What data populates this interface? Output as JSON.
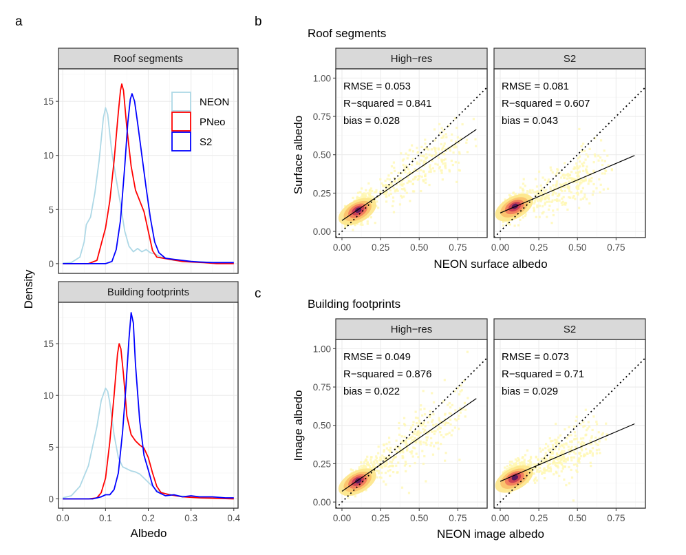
{
  "panel_labels": {
    "a": "a",
    "b": "b",
    "c": "c"
  },
  "chart_data": [
    {
      "id": "a",
      "type": "line",
      "ylabel": "Density",
      "xlabel": "Albedo",
      "xlim": [
        -0.01,
        0.41
      ],
      "x_ticks": [
        0.0,
        0.1,
        0.2,
        0.3,
        0.4
      ],
      "x_tick_labels": [
        "0.0",
        "0.1",
        "0.2",
        "0.3",
        "0.4"
      ],
      "legend": {
        "placement": "top-right",
        "entries": [
          {
            "name": "NEON",
            "color": "#add8e6"
          },
          {
            "name": "PNeo",
            "color": "#ff0000"
          },
          {
            "name": "S2",
            "color": "#0000ff"
          }
        ]
      },
      "facets": [
        {
          "strip": "Roof segments",
          "ylim": [
            -0.9,
            18.0
          ],
          "y_ticks": [
            0,
            5,
            10,
            15
          ],
          "y_tick_labels": [
            "0",
            "5",
            "10",
            "15"
          ],
          "series": [
            {
              "name": "NEON",
              "color": "#add8e6",
              "points": [
                [
                  0.0,
                  0.05
                ],
                [
                  0.02,
                  0.1
                ],
                [
                  0.04,
                  0.6
                ],
                [
                  0.05,
                  2.0
                ],
                [
                  0.055,
                  3.6
                ],
                [
                  0.065,
                  4.3
                ],
                [
                  0.075,
                  6.5
                ],
                [
                  0.085,
                  9.5
                ],
                [
                  0.095,
                  13.5
                ],
                [
                  0.1,
                  14.4
                ],
                [
                  0.105,
                  13.8
                ],
                [
                  0.115,
                  10.2
                ],
                [
                  0.125,
                  7.8
                ],
                [
                  0.135,
                  5.5
                ],
                [
                  0.145,
                  3.0
                ],
                [
                  0.155,
                  1.6
                ],
                [
                  0.165,
                  1.1
                ],
                [
                  0.175,
                  1.4
                ],
                [
                  0.185,
                  1.1
                ],
                [
                  0.195,
                  1.3
                ],
                [
                  0.205,
                  1.0
                ],
                [
                  0.215,
                  0.9
                ],
                [
                  0.23,
                  0.6
                ],
                [
                  0.26,
                  0.3
                ],
                [
                  0.3,
                  0.2
                ],
                [
                  0.35,
                  0.1
                ],
                [
                  0.4,
                  0.05
                ]
              ]
            },
            {
              "name": "PNeo",
              "color": "#ff0000",
              "points": [
                [
                  0.0,
                  0.0
                ],
                [
                  0.06,
                  0.0
                ],
                [
                  0.08,
                  0.3
                ],
                [
                  0.09,
                  1.8
                ],
                [
                  0.1,
                  3.3
                ],
                [
                  0.11,
                  5.8
                ],
                [
                  0.12,
                  9.5
                ],
                [
                  0.13,
                  14.0
                ],
                [
                  0.135,
                  16.0
                ],
                [
                  0.138,
                  16.6
                ],
                [
                  0.142,
                  16.0
                ],
                [
                  0.15,
                  12.5
                ],
                [
                  0.16,
                  9.0
                ],
                [
                  0.17,
                  6.8
                ],
                [
                  0.18,
                  5.8
                ],
                [
                  0.19,
                  4.8
                ],
                [
                  0.2,
                  3.0
                ],
                [
                  0.21,
                  1.2
                ],
                [
                  0.22,
                  0.6
                ],
                [
                  0.25,
                  0.4
                ],
                [
                  0.28,
                  0.2
                ],
                [
                  0.3,
                  0.15
                ],
                [
                  0.33,
                  0.1
                ],
                [
                  0.36,
                  0.0
                ],
                [
                  0.4,
                  0.0
                ]
              ]
            },
            {
              "name": "S2",
              "color": "#0000ff",
              "points": [
                [
                  0.0,
                  0.0
                ],
                [
                  0.1,
                  0.0
                ],
                [
                  0.115,
                  0.2
                ],
                [
                  0.125,
                  1.3
                ],
                [
                  0.135,
                  4.0
                ],
                [
                  0.145,
                  9.0
                ],
                [
                  0.152,
                  13.0
                ],
                [
                  0.158,
                  15.2
                ],
                [
                  0.162,
                  15.7
                ],
                [
                  0.168,
                  15.0
                ],
                [
                  0.175,
                  13.0
                ],
                [
                  0.185,
                  10.0
                ],
                [
                  0.195,
                  7.0
                ],
                [
                  0.205,
                  4.2
                ],
                [
                  0.215,
                  2.0
                ],
                [
                  0.225,
                  1.0
                ],
                [
                  0.24,
                  0.5
                ],
                [
                  0.26,
                  0.4
                ],
                [
                  0.28,
                  0.3
                ],
                [
                  0.3,
                  0.2
                ],
                [
                  0.32,
                  0.15
                ],
                [
                  0.35,
                  0.1
                ],
                [
                  0.38,
                  0.1
                ],
                [
                  0.4,
                  0.1
                ]
              ]
            }
          ]
        },
        {
          "strip": "Building footprints",
          "ylim": [
            -0.9,
            19.0
          ],
          "y_ticks": [
            0,
            5,
            10,
            15
          ],
          "y_tick_labels": [
            "0",
            "5",
            "10",
            "15"
          ],
          "series": [
            {
              "name": "NEON",
              "color": "#add8e6",
              "points": [
                [
                  0.0,
                  0.1
                ],
                [
                  0.02,
                  0.3
                ],
                [
                  0.04,
                  1.2
                ],
                [
                  0.06,
                  3.2
                ],
                [
                  0.08,
                  7.0
                ],
                [
                  0.09,
                  9.5
                ],
                [
                  0.1,
                  10.7
                ],
                [
                  0.105,
                  10.4
                ],
                [
                  0.11,
                  9.3
                ],
                [
                  0.12,
                  6.2
                ],
                [
                  0.13,
                  4.0
                ],
                [
                  0.14,
                  3.1
                ],
                [
                  0.15,
                  2.9
                ],
                [
                  0.16,
                  2.7
                ],
                [
                  0.17,
                  2.6
                ],
                [
                  0.18,
                  2.4
                ],
                [
                  0.19,
                  2.0
                ],
                [
                  0.2,
                  1.6
                ],
                [
                  0.21,
                  1.2
                ],
                [
                  0.22,
                  0.8
                ],
                [
                  0.24,
                  0.5
                ],
                [
                  0.27,
                  0.3
                ],
                [
                  0.3,
                  0.2
                ],
                [
                  0.35,
                  0.1
                ],
                [
                  0.4,
                  0.05
                ]
              ]
            },
            {
              "name": "PNeo",
              "color": "#ff0000",
              "points": [
                [
                  0.0,
                  0.0
                ],
                [
                  0.06,
                  0.0
                ],
                [
                  0.08,
                  0.1
                ],
                [
                  0.09,
                  0.6
                ],
                [
                  0.1,
                  2.0
                ],
                [
                  0.11,
                  5.5
                ],
                [
                  0.12,
                  10.0
                ],
                [
                  0.128,
                  14.0
                ],
                [
                  0.132,
                  15.0
                ],
                [
                  0.136,
                  14.5
                ],
                [
                  0.142,
                  12.0
                ],
                [
                  0.15,
                  8.0
                ],
                [
                  0.16,
                  6.2
                ],
                [
                  0.17,
                  5.6
                ],
                [
                  0.18,
                  5.2
                ],
                [
                  0.19,
                  4.9
                ],
                [
                  0.2,
                  4.0
                ],
                [
                  0.21,
                  2.5
                ],
                [
                  0.22,
                  1.2
                ],
                [
                  0.23,
                  0.6
                ],
                [
                  0.25,
                  0.4
                ],
                [
                  0.28,
                  0.2
                ],
                [
                  0.32,
                  0.1
                ],
                [
                  0.36,
                  0.05
                ],
                [
                  0.4,
                  0.0
                ]
              ]
            },
            {
              "name": "S2",
              "color": "#0000ff",
              "points": [
                [
                  0.0,
                  0.0
                ],
                [
                  0.07,
                  0.0
                ],
                [
                  0.09,
                  0.2
                ],
                [
                  0.1,
                  0.4
                ],
                [
                  0.11,
                  0.4
                ],
                [
                  0.12,
                  0.9
                ],
                [
                  0.13,
                  2.5
                ],
                [
                  0.14,
                  6.5
                ],
                [
                  0.148,
                  11.0
                ],
                [
                  0.155,
                  15.5
                ],
                [
                  0.16,
                  18.0
                ],
                [
                  0.165,
                  17.0
                ],
                [
                  0.17,
                  13.0
                ],
                [
                  0.18,
                  7.5
                ],
                [
                  0.19,
                  4.2
                ],
                [
                  0.2,
                  2.8
                ],
                [
                  0.21,
                  1.3
                ],
                [
                  0.22,
                  0.7
                ],
                [
                  0.24,
                  0.3
                ],
                [
                  0.26,
                  0.4
                ],
                [
                  0.28,
                  0.2
                ],
                [
                  0.3,
                  0.3
                ],
                [
                  0.32,
                  0.2
                ],
                [
                  0.35,
                  0.2
                ],
                [
                  0.38,
                  0.1
                ],
                [
                  0.4,
                  0.1
                ]
              ]
            }
          ]
        }
      ]
    },
    {
      "id": "b",
      "type": "scatter",
      "title": "Roof segments",
      "xlabel": "NEON surface albedo",
      "ylabel": "Surface albedo",
      "xlim": [
        -0.04,
        0.94
      ],
      "ylim": [
        -0.04,
        1.06
      ],
      "x_ticks": [
        0.0,
        0.25,
        0.5,
        0.75
      ],
      "x_tick_labels": [
        "0.00",
        "0.25",
        "0.50",
        "0.75"
      ],
      "y_ticks": [
        0.0,
        0.25,
        0.5,
        0.75,
        1.0
      ],
      "y_tick_labels": [
        "0.00",
        "0.25",
        "0.50",
        "0.75",
        "1.00"
      ],
      "reference_line": "1:1 (dotted)",
      "facets": [
        {
          "strip": "High−res",
          "stats": [
            "RMSE = 0.053",
            "R−squared = 0.841",
            "bias = 0.028"
          ],
          "fit_line": [
            [
              0.0,
              0.071
            ],
            [
              0.87,
              0.665
            ]
          ],
          "density_center": [
            0.1,
            0.13
          ],
          "cloud_spread": [
            0.16,
            0.58
          ]
        },
        {
          "strip": "S2",
          "stats": [
            "RMSE = 0.081",
            "R−squared = 0.607",
            "bias = 0.043"
          ],
          "fit_line": [
            [
              0.0,
              0.12
            ],
            [
              0.87,
              0.495
            ]
          ],
          "density_center": [
            0.09,
            0.155
          ],
          "cloud_spread": [
            0.18,
            0.45
          ]
        }
      ]
    },
    {
      "id": "c",
      "type": "scatter",
      "title": "Building footprints",
      "xlabel": "NEON image albedo",
      "ylabel": "Image albedo",
      "xlim": [
        -0.04,
        0.94
      ],
      "ylim": [
        -0.04,
        1.06
      ],
      "x_ticks": [
        0.0,
        0.25,
        0.5,
        0.75
      ],
      "x_tick_labels": [
        "0.00",
        "0.25",
        "0.50",
        "0.75"
      ],
      "y_ticks": [
        0.0,
        0.25,
        0.5,
        0.75,
        1.0
      ],
      "y_tick_labels": [
        "0.00",
        "0.25",
        "0.50",
        "0.75",
        "1.00"
      ],
      "reference_line": "1:1 (dotted)",
      "facets": [
        {
          "strip": "High−res",
          "stats": [
            "RMSE = 0.049",
            "R−squared = 0.876",
            "bias = 0.022"
          ],
          "fit_line": [
            [
              0.0,
              0.07
            ],
            [
              0.87,
              0.675
            ]
          ],
          "density_center": [
            0.1,
            0.13
          ],
          "cloud_spread": [
            0.15,
            0.55
          ]
        },
        {
          "strip": "S2",
          "stats": [
            "RMSE = 0.073",
            "R−squared = 0.71",
            "bias = 0.029"
          ],
          "fit_line": [
            [
              0.0,
              0.135
            ],
            [
              0.87,
              0.51
            ]
          ],
          "density_center": [
            0.09,
            0.15
          ],
          "cloud_spread": [
            0.17,
            0.42
          ]
        }
      ]
    }
  ]
}
